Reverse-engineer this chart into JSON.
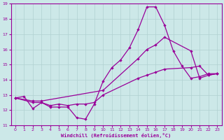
{
  "xlabel": "Windchill (Refroidissement éolien,°C)",
  "xlim": [
    -0.5,
    23.5
  ],
  "ylim": [
    11,
    19
  ],
  "yticks": [
    11,
    12,
    13,
    14,
    15,
    16,
    17,
    18,
    19
  ],
  "xticks": [
    0,
    1,
    2,
    3,
    4,
    5,
    6,
    7,
    8,
    9,
    10,
    11,
    12,
    13,
    14,
    15,
    16,
    17,
    18,
    19,
    20,
    21,
    22,
    23
  ],
  "bg_color": "#cce8e8",
  "grid_color": "#b0d0d0",
  "line_color": "#990099",
  "line1_x": [
    0,
    1,
    2,
    3,
    4,
    5,
    6,
    7,
    8,
    9,
    10,
    11,
    12,
    13,
    14,
    15,
    16,
    17,
    18,
    19,
    20,
    21,
    22,
    23
  ],
  "line1_y": [
    12.8,
    12.9,
    12.1,
    12.5,
    12.2,
    12.2,
    12.2,
    11.5,
    11.4,
    12.4,
    13.9,
    14.8,
    15.3,
    16.1,
    17.3,
    18.8,
    18.8,
    17.6,
    15.9,
    14.9,
    14.1,
    14.2,
    14.4,
    14.4
  ],
  "line2_x": [
    0,
    2,
    3,
    4,
    5,
    6,
    7,
    8,
    9,
    10,
    14,
    15,
    16,
    17,
    20,
    21,
    22,
    23
  ],
  "line2_y": [
    12.8,
    12.5,
    12.5,
    12.3,
    12.4,
    12.3,
    12.4,
    12.4,
    12.5,
    13.0,
    14.1,
    14.3,
    14.5,
    14.7,
    14.8,
    14.9,
    14.3,
    14.4
  ],
  "line3_x": [
    0,
    2,
    3,
    10,
    14,
    15,
    16,
    17,
    20,
    21,
    22,
    23
  ],
  "line3_y": [
    12.8,
    12.6,
    12.6,
    13.3,
    15.4,
    16.0,
    16.3,
    16.8,
    15.9,
    14.1,
    14.3,
    14.4
  ]
}
